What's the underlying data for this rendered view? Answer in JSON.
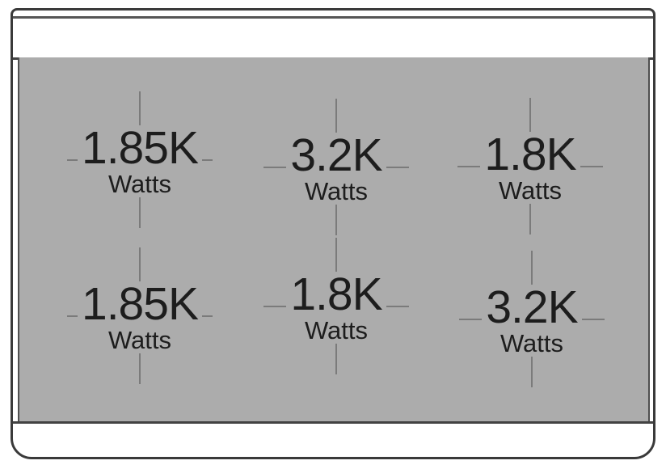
{
  "diagram": {
    "unit_label": "Watts",
    "burners": [
      {
        "position": "top-left",
        "watts": "1.85K"
      },
      {
        "position": "top-center",
        "watts": "3.2K"
      },
      {
        "position": "top-right",
        "watts": "1.8K"
      },
      {
        "position": "bottom-left",
        "watts": "1.85K"
      },
      {
        "position": "bottom-center",
        "watts": "1.8K"
      },
      {
        "position": "bottom-right",
        "watts": "3.2K"
      }
    ],
    "colors": {
      "surface": "#acacac",
      "crosshair": "#7b7b7b",
      "text": "#1d1d1d",
      "frame": "#3a3a3a"
    }
  }
}
